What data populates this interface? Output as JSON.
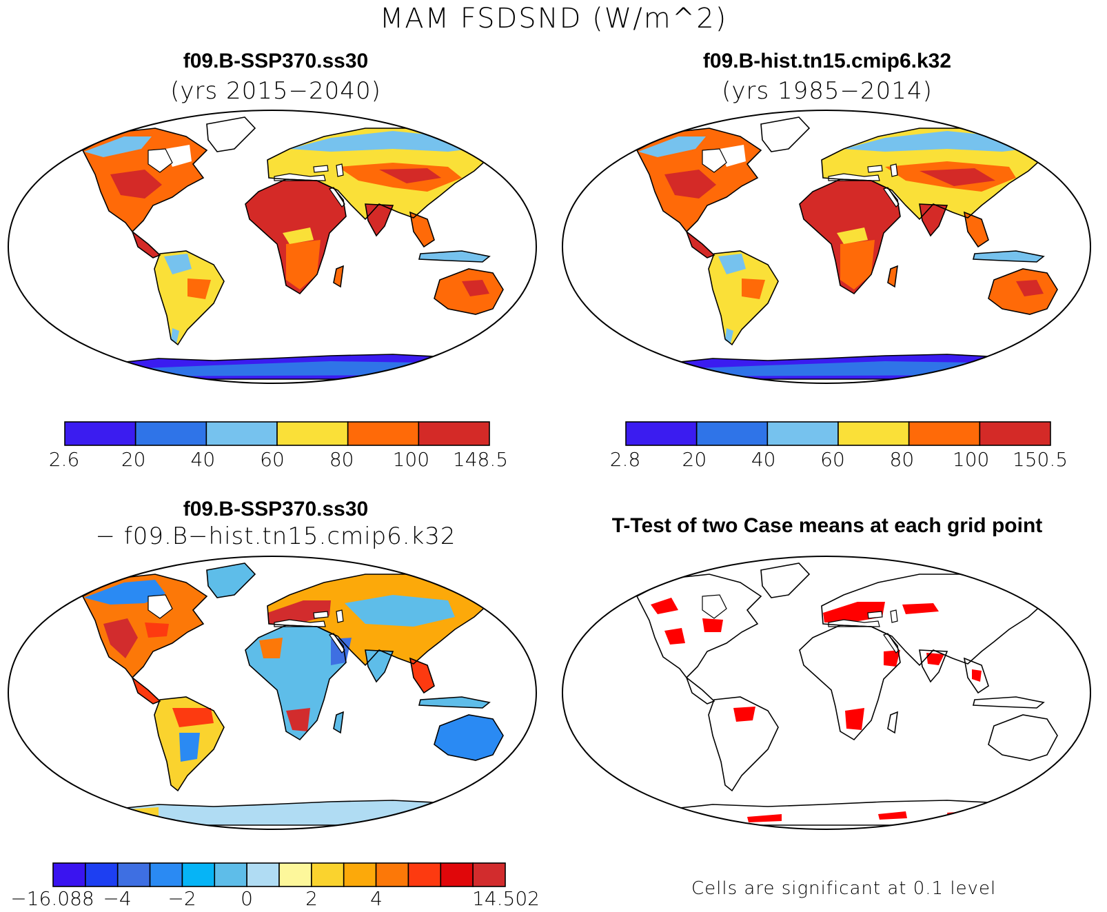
{
  "figure_title": "MAM FSDSND (W/m^2)",
  "panels": [
    {
      "id": "test",
      "title": "f09.B-SSP370.ss30",
      "subtitle": "(yrs 2015−2040)",
      "colorbar": {
        "colors": [
          "#3b1cf0",
          "#2f74e8",
          "#76c2ee",
          "#fae038",
          "#ff6a08",
          "#d42a27"
        ],
        "tick_labels": [
          "2.6",
          "20",
          "40",
          "60",
          "80",
          "100",
          "148.5"
        ]
      }
    },
    {
      "id": "control",
      "title": "f09.B-hist.tn15.cmip6.k32",
      "subtitle": "(yrs 1985−2014)",
      "colorbar": {
        "colors": [
          "#3b1cf0",
          "#2f74e8",
          "#76c2ee",
          "#fae038",
          "#ff6a08",
          "#d42a27"
        ],
        "tick_labels": [
          "2.8",
          "20",
          "40",
          "60",
          "80",
          "100",
          "150.5"
        ]
      }
    },
    {
      "id": "difference",
      "title": "f09.B-SSP370.ss30",
      "subtitle": "− f09.B−hist.tn15.cmip6.k32",
      "colorbar": {
        "colors": [
          "#3a14f0",
          "#1d3ff2",
          "#3e6fe2",
          "#2a8af3",
          "#06b4f6",
          "#5ebde9",
          "#b0dcf3",
          "#fdf79b",
          "#fad32e",
          "#fca90a",
          "#fc7808",
          "#fd3a10",
          "#e0070a",
          "#d22c2d"
        ],
        "tick_labels": [
          "−16.088",
          "−4",
          "−2",
          "0",
          "2",
          "4",
          "14.502"
        ]
      }
    },
    {
      "id": "ttest",
      "title": "T-Test of two Case means at each grid point",
      "footnote": "Cells are significant at 0.1 level",
      "significant_color": "#ff0000"
    }
  ]
}
